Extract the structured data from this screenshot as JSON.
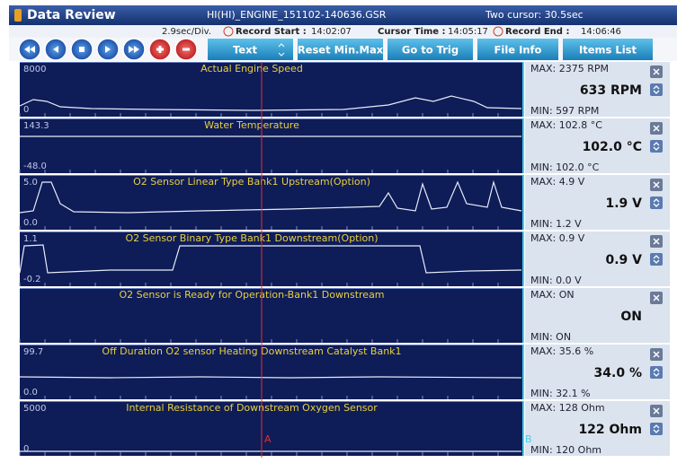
{
  "header": {
    "title": "Data Review",
    "file": "HI(HI)_ENGINE_151102-140636.GSR",
    "cursor_mode": "Two cursor: 30.5sec"
  },
  "info": {
    "division": "2.9sec/Div.",
    "record_start_label": "Record Start :",
    "record_start": "14:02:07",
    "cursor_time_label": "Cursor Time :",
    "cursor_time": "14:05:17",
    "record_end_label": "Record End :",
    "record_end": "14:06:46"
  },
  "toolbar": {
    "buttons": [
      "Text",
      "Reset Min.Max",
      "Go to Trig",
      "File Info",
      "Items List"
    ]
  },
  "cursors": [
    "A",
    "B"
  ],
  "panels": [
    {
      "title": "Actual Engine Speed",
      "ymax": "8000",
      "ymin": "0",
      "max": "MAX:  2375 RPM",
      "current": "633 RPM",
      "min": "MIN:  597 RPM"
    },
    {
      "title": "Water Temperature",
      "ymax": "143.3",
      "ymin": "-48.0",
      "max": "MAX: 102.8 °C",
      "current": "102.0 °C",
      "min": "MIN: 102.0 °C"
    },
    {
      "title": "O2 Sensor Linear Type Bank1 Upstream(Option)",
      "ymax": "5.0",
      "ymin": "0.0",
      "max": "MAX:   4.9 V",
      "current": "1.9 V",
      "min": "MIN:   1.2 V"
    },
    {
      "title": "O2 Sensor Binary Type Bank1 Downstream(Option)",
      "ymax": "1.1",
      "ymin": "-0.2",
      "max": "MAX:   0.9 V",
      "current": "0.9 V",
      "min": "MIN:   0.0 V"
    },
    {
      "title": "O2 Sensor is Ready for Operation-Bank1 Downstream",
      "ymax": null,
      "ymin": null,
      "max": "MAX: ON",
      "current": "ON",
      "min": "MIN: ON"
    },
    {
      "title": "Off Duration O2 sensor Heating Downstream Catalyst Bank1",
      "ymax": "99.7",
      "ymin": "0.0",
      "max": "MAX:   35.6 %",
      "current": "34.0 %",
      "min": "MIN:  32.1 %"
    },
    {
      "title": "Internal Resistance of Downstream Oxygen Sensor",
      "ymax": "5000",
      "ymin": "0",
      "max": "MAX:    128 Ohm",
      "current": "122 Ohm",
      "min": "MIN:   120 Ohm"
    }
  ]
}
